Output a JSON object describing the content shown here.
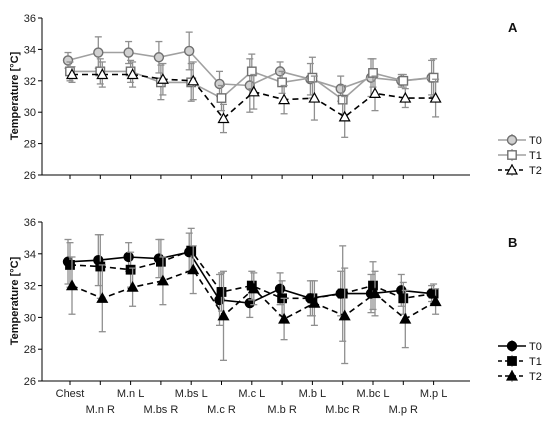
{
  "chart_data": [
    {
      "panel": "A",
      "type": "line",
      "ylabel": "Temperature [°C]",
      "ylim": [
        26,
        36
      ],
      "yticks": [
        26,
        28,
        30,
        32,
        34,
        36
      ],
      "categories": [
        "Chest",
        "M.n R",
        "M.n L",
        "M.bs R",
        "M.bs L",
        "M.c R",
        "M.c L",
        "M.b R",
        "M.b L",
        "M.bc R",
        "M.bc L",
        "M.p R",
        "M.p L"
      ],
      "grid": false,
      "legend": "right",
      "series": [
        {
          "name": "T0",
          "marker": "circle",
          "style": "solid",
          "color": "#a0a0a0",
          "values": [
            33.3,
            33.8,
            33.8,
            33.5,
            33.9,
            31.8,
            31.7,
            32.6,
            32.1,
            31.5,
            32.2,
            32.0,
            32.2
          ],
          "errors": [
            0.5,
            1.0,
            0.7,
            1.0,
            1.2,
            0.8,
            1.7,
            0.6,
            1.0,
            0.8,
            1.2,
            0.4,
            1.1
          ]
        },
        {
          "name": "T1",
          "marker": "square",
          "style": "solid",
          "color": "#a0a0a0",
          "values": [
            32.6,
            32.6,
            32.6,
            31.9,
            31.9,
            30.9,
            32.6,
            31.9,
            32.2,
            30.8,
            32.5,
            32.0,
            32.2
          ],
          "errors": [
            0.6,
            0.8,
            0.7,
            1.1,
            1.2,
            0.8,
            1.1,
            0.7,
            1.3,
            0.9,
            0.9,
            0.4,
            1.2
          ]
        },
        {
          "name": "T2",
          "marker": "triangle",
          "style": "dashed",
          "color": "#000000",
          "values": [
            32.4,
            32.4,
            32.4,
            32.1,
            32.0,
            29.6,
            31.3,
            30.8,
            30.9,
            29.7,
            31.2,
            30.9,
            30.9
          ],
          "errors": [
            0.5,
            0.8,
            0.8,
            1.0,
            1.2,
            0.9,
            1.1,
            0.9,
            1.4,
            1.3,
            1.1,
            0.6,
            1.2
          ]
        }
      ]
    },
    {
      "panel": "B",
      "type": "line",
      "ylabel": "Temperature [°C]",
      "ylim": [
        26,
        36
      ],
      "yticks": [
        26,
        28,
        30,
        32,
        34,
        36
      ],
      "categories": [
        "Chest",
        "M.n R",
        "M.n L",
        "M.bs R",
        "M.bs L",
        "M.c R",
        "M.c L",
        "M.b R",
        "M.b L",
        "M.bc R",
        "M.bc L",
        "M.p R",
        "M.p L"
      ],
      "grid": false,
      "legend": "right",
      "series": [
        {
          "name": "T0",
          "marker": "circle",
          "style": "solid",
          "color": "#000000",
          "values": [
            33.5,
            33.6,
            33.8,
            33.7,
            34.1,
            31.1,
            30.9,
            31.8,
            31.2,
            31.5,
            31.5,
            31.7,
            31.5
          ],
          "errors": [
            1.4,
            1.6,
            0.9,
            1.2,
            1.2,
            1.6,
            0.9,
            1.0,
            1.1,
            1.4,
            1.2,
            1.0,
            0.5
          ]
        },
        {
          "name": "T1",
          "marker": "square",
          "style": "dashed",
          "color": "#000000",
          "values": [
            33.3,
            33.2,
            33.0,
            33.5,
            34.2,
            31.6,
            32.0,
            31.2,
            31.2,
            31.5,
            32.0,
            31.2,
            31.5
          ],
          "errors": [
            1.4,
            2.0,
            1.1,
            1.4,
            1.4,
            1.2,
            0.9,
            1.1,
            1.1,
            3.0,
            1.5,
            1.0,
            0.6
          ]
        },
        {
          "name": "T2",
          "marker": "triangle",
          "style": "dashed",
          "color": "#000000",
          "values": [
            32.0,
            31.2,
            31.9,
            32.3,
            33.0,
            30.1,
            31.8,
            29.9,
            30.9,
            30.1,
            31.5,
            29.9,
            31.0
          ],
          "errors": [
            1.8,
            2.1,
            1.2,
            1.5,
            1.5,
            2.8,
            1.0,
            1.3,
            1.4,
            3.0,
            1.4,
            1.8,
            0.8
          ]
        }
      ]
    }
  ]
}
